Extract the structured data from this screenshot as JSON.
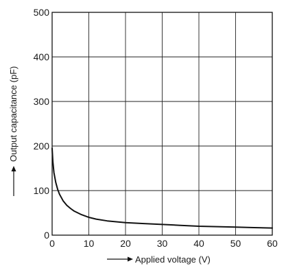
{
  "chart_data": {
    "type": "line",
    "title": "",
    "xlabel": "Applied voltage (V)",
    "ylabel": "Output capacitance (pF)",
    "xlim": [
      0,
      60
    ],
    "ylim": [
      0,
      500
    ],
    "x_ticks": [
      "0",
      "10",
      "20",
      "30",
      "40",
      "50",
      "60"
    ],
    "y_ticks": [
      "0",
      "100",
      "200",
      "300",
      "400",
      "500"
    ],
    "grid": true,
    "legend": "none",
    "line_color": "#111111",
    "series": [
      {
        "x": [
          0,
          0.2,
          0.5,
          1,
          1.5,
          2,
          3,
          4,
          5,
          6,
          8,
          10,
          12,
          15,
          20,
          25,
          30,
          35,
          40,
          45,
          50,
          55,
          60
        ],
        "y": [
          195,
          165,
          140,
          118,
          103,
          92,
          77,
          67,
          60,
          54,
          46,
          40,
          36,
          32,
          28,
          26,
          24,
          22,
          20,
          19,
          18,
          17,
          16
        ]
      }
    ]
  }
}
